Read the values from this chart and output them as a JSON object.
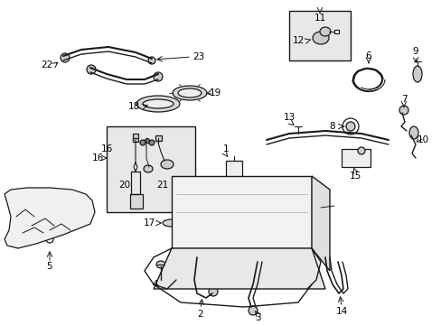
{
  "bg_color": "#ffffff",
  "line_color": "#1a1a1a",
  "box_fill": "#ebebeb",
  "label_fontsize": 7.5,
  "figsize": [
    4.89,
    3.6
  ],
  "dpi": 100
}
